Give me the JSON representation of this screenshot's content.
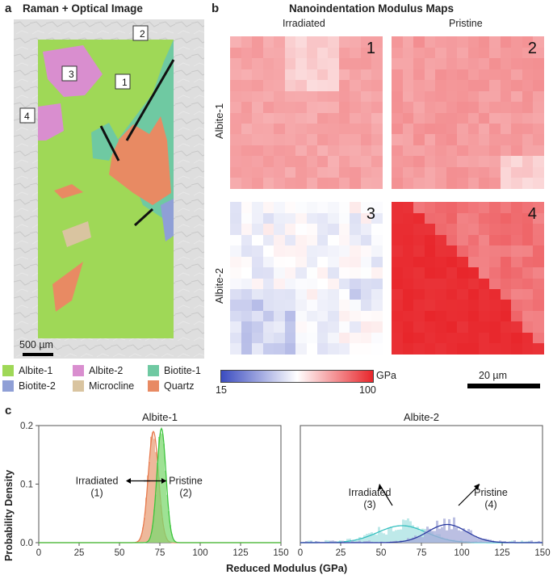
{
  "panel_a": {
    "letter": "a",
    "title": "Raman + Optical Image",
    "scalebar": "500 µm",
    "markers": [
      "1",
      "2",
      "3",
      "4"
    ],
    "legend": [
      {
        "label": "Albite-1",
        "color": "#9fd857"
      },
      {
        "label": "Albite-2",
        "color": "#d98ecf"
      },
      {
        "label": "Biotite-1",
        "color": "#6fc9a2"
      },
      {
        "label": "Biotite-2",
        "color": "#8f9fd6"
      },
      {
        "label": "Microcline",
        "color": "#d9c4a0"
      },
      {
        "label": "Quartz",
        "color": "#e88a63"
      }
    ]
  },
  "panel_b": {
    "letter": "b",
    "title": "Nanoindentation Modulus Maps",
    "col_labels": [
      "Irradiated",
      "Pristine"
    ],
    "row_labels": [
      "Albite-1",
      "Albite-2"
    ],
    "map_numbers": [
      "1",
      "2",
      "3",
      "4"
    ],
    "colorbar": {
      "min": "15",
      "max": "100",
      "unit": "GPa",
      "min_color": "#3b4cc0",
      "mid_color": "#ffffff",
      "max_color": "#e8262b"
    },
    "scalebar": "20 µm"
  },
  "panel_c": {
    "letter": "c",
    "y_label": "Probability Density",
    "x_label": "Reduced Modulus (GPa)"
  },
  "chart_data": [
    {
      "type": "area",
      "title": "Albite-1",
      "xlabel": "Reduced Modulus (GPa)",
      "ylabel": "Probability Density",
      "xlim": [
        0,
        150
      ],
      "ylim": [
        0,
        0.2
      ],
      "xticks": [
        0,
        25,
        50,
        75,
        100,
        125,
        150
      ],
      "yticks": [
        0.0,
        0.1,
        0.2
      ],
      "series": [
        {
          "name": "Irradiated",
          "color": "#e87a4e",
          "fill": "#e8a07a",
          "mean": 71,
          "sd": 3.2,
          "peak": 0.19
        },
        {
          "name": "Pristine",
          "color": "#3cc43c",
          "fill": "#7ed870",
          "mean": 76,
          "sd": 2.8,
          "peak": 0.195
        }
      ],
      "annotations": [
        {
          "text": "Irradiated",
          "sub": "(1)",
          "x": 36,
          "y": 0.1,
          "arrow": "left"
        },
        {
          "text": "Pristine",
          "sub": "(2)",
          "x": 91,
          "y": 0.1,
          "arrow": "right"
        }
      ]
    },
    {
      "type": "area",
      "title": "Albite-2",
      "xlabel": "Reduced Modulus (GPa)",
      "ylabel": "",
      "xlim": [
        0,
        150
      ],
      "ylim": [
        0,
        0.2
      ],
      "xticks": [
        0,
        25,
        50,
        75,
        100,
        125,
        150
      ],
      "series": [
        {
          "name": "Irradiated",
          "color": "#35c0c0",
          "fill": "#a8e2e2",
          "mean": 63,
          "sd": 15,
          "peak": 0.029
        },
        {
          "name": "Pristine",
          "color": "#2a3aa0",
          "fill": "#a4aad8",
          "mean": 91,
          "sd": 12,
          "peak": 0.031
        }
      ],
      "annotations": [
        {
          "text": "Irradiated",
          "sub": "(3)",
          "x": 43,
          "y": 0.08,
          "arrow": "down-right"
        },
        {
          "text": "Pristine",
          "sub": "(4)",
          "x": 118,
          "y": 0.08,
          "arrow": "down-left"
        }
      ]
    }
  ]
}
